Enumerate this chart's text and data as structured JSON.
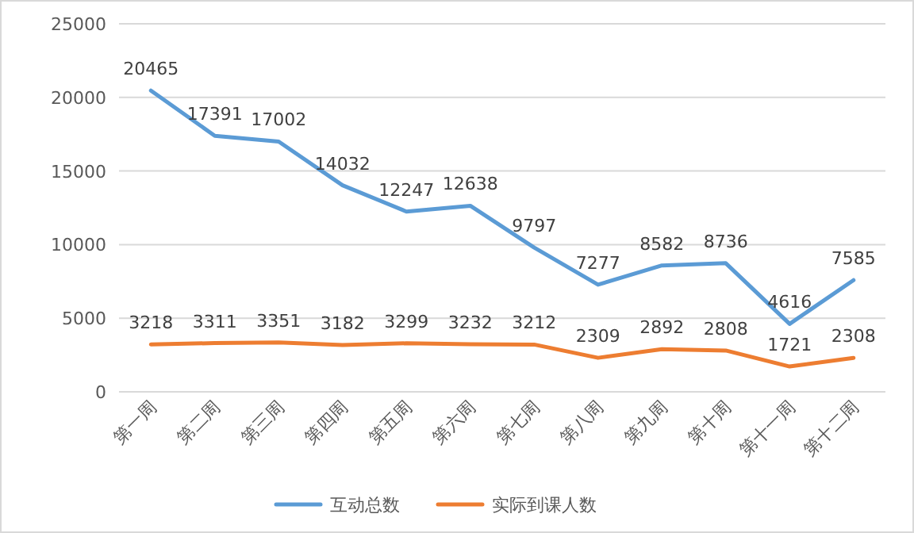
{
  "chart_data": {
    "type": "line",
    "categories": [
      "第一周",
      "第二周",
      "第三周",
      "第四周",
      "第五周",
      "第六周",
      "第七周",
      "第八周",
      "第九周",
      "第十周",
      "第十一周",
      "第十二周"
    ],
    "series": [
      {
        "name": "互动总数",
        "color": "#5b9bd5",
        "values": [
          20465,
          17391,
          17002,
          14032,
          12247,
          12638,
          9797,
          7277,
          8582,
          8736,
          4616,
          7585
        ]
      },
      {
        "name": "实际到课人数",
        "color": "#ed7d31",
        "values": [
          3218,
          3311,
          3351,
          3182,
          3299,
          3232,
          3212,
          2309,
          2892,
          2808,
          1721,
          2308
        ]
      }
    ],
    "ylim": [
      0,
      25000
    ],
    "yticks": [
      0,
      5000,
      10000,
      15000,
      20000,
      25000
    ],
    "grid": "y",
    "legend": "bottom",
    "data_labels": true,
    "marker": "none",
    "line_style": "solid"
  }
}
